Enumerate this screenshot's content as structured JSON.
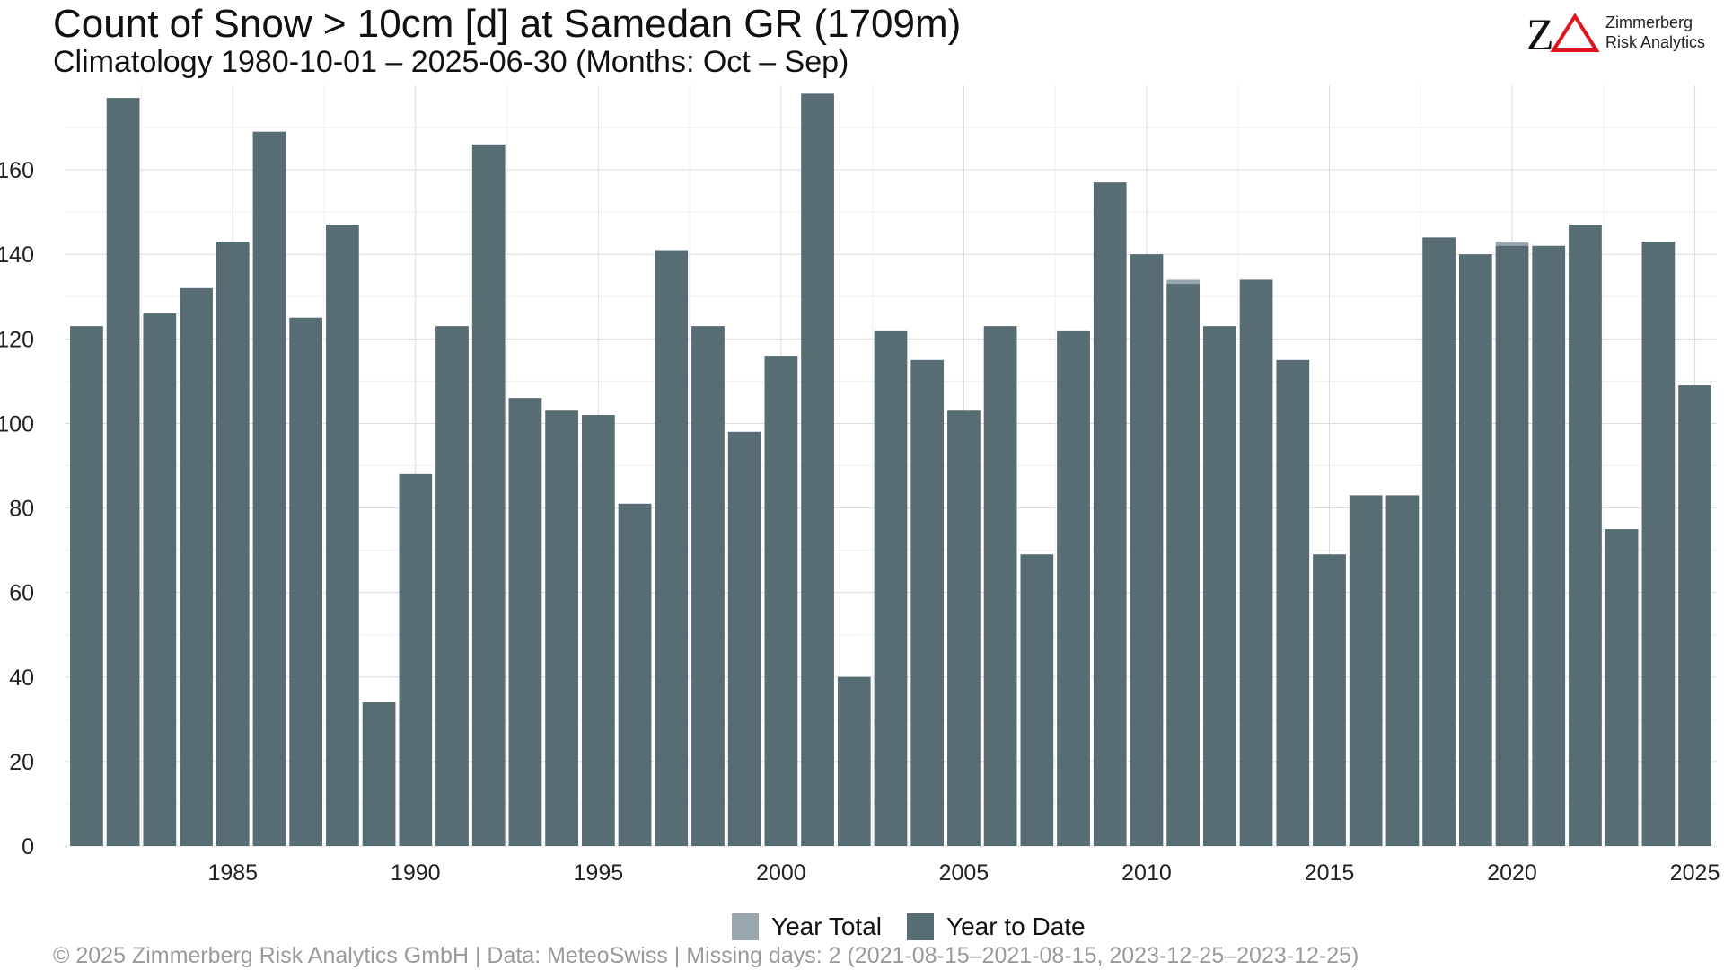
{
  "header": {
    "title": "Count of Snow > 10cm [d] at Samedan  GR (1709m)",
    "subtitle": "Climatology 1980-10-01 – 2025-06-30 (Months: Oct – Sep)"
  },
  "logo": {
    "mark": "ZΔ",
    "line1": "Zimmerberg",
    "line2": "Risk Analytics",
    "colors": {
      "z": "#111111",
      "delta": "#e0141e"
    }
  },
  "legend": {
    "items": [
      {
        "label": "Year Total",
        "color": "#97a7ad"
      },
      {
        "label": "Year to Date",
        "color": "#586c73"
      }
    ]
  },
  "caption": "©  2025 Zimmerberg Risk Analytics GmbH | Data: MeteoSwiss | Missing days: 2 (2021-08-15–2021-08-15, 2023-12-25–2023-12-25)",
  "chart_data": {
    "type": "bar",
    "title": "Count of Snow > 10cm [d] at Samedan  GR (1709m)",
    "subtitle": "Climatology 1980-10-01 – 2025-06-30 (Months: Oct – Sep)",
    "xlabel": "",
    "ylabel": "",
    "categories": [
      1981,
      1982,
      1983,
      1984,
      1985,
      1986,
      1987,
      1988,
      1989,
      1990,
      1991,
      1992,
      1993,
      1994,
      1995,
      1996,
      1997,
      1998,
      1999,
      2000,
      2001,
      2002,
      2003,
      2004,
      2005,
      2006,
      2007,
      2008,
      2009,
      2010,
      2011,
      2012,
      2013,
      2014,
      2015,
      2016,
      2017,
      2018,
      2019,
      2020,
      2021,
      2022,
      2023,
      2024,
      2025
    ],
    "series": [
      {
        "name": "Year Total",
        "color": "#97a7ad",
        "values": [
          123,
          177,
          126,
          132,
          143,
          169,
          125,
          147,
          34,
          88,
          123,
          166,
          106,
          103,
          102,
          81,
          141,
          123,
          98,
          116,
          178,
          40,
          122,
          115,
          103,
          123,
          69,
          122,
          157,
          140,
          134,
          123,
          134,
          115,
          69,
          83,
          83,
          144,
          140,
          143,
          142,
          147,
          75,
          143,
          109
        ]
      },
      {
        "name": "Year to Date",
        "color": "#586c73",
        "values": [
          123,
          177,
          126,
          132,
          143,
          169,
          125,
          147,
          34,
          88,
          123,
          166,
          106,
          103,
          102,
          81,
          141,
          123,
          98,
          116,
          178,
          40,
          122,
          115,
          103,
          123,
          69,
          122,
          157,
          140,
          133,
          123,
          134,
          115,
          69,
          83,
          83,
          144,
          140,
          142,
          142,
          147,
          75,
          143,
          109
        ]
      }
    ],
    "xlim": [
      1980.4,
      2025.6
    ],
    "ylim": [
      0,
      180
    ],
    "yticks": [
      0,
      20,
      40,
      60,
      80,
      100,
      120,
      140,
      160
    ],
    "xticks": [
      1985,
      1990,
      1995,
      2000,
      2005,
      2010,
      2015,
      2020,
      2025
    ],
    "grid": true,
    "legend_position": "bottom"
  }
}
